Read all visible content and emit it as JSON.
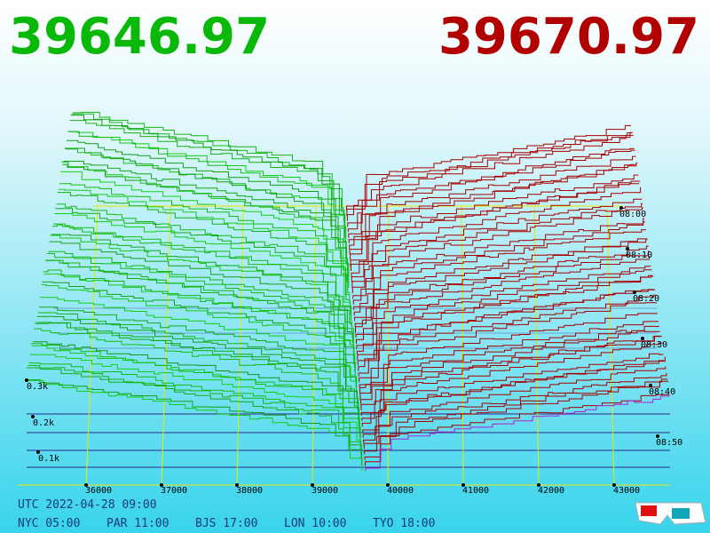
{
  "header": {
    "bid": "39646.97",
    "ask": "39670.97"
  },
  "axes": {
    "price_labels": [
      "36000",
      "37000",
      "38000",
      "39000",
      "40000",
      "41000",
      "42000",
      "43000"
    ],
    "volume_labels": [
      "0.3k",
      "0.2k",
      "0.1k"
    ],
    "time_labels": [
      "08:00",
      "08:10",
      "08:20",
      "08:30",
      "08:40",
      "08:50"
    ]
  },
  "footer": {
    "utc": "UTC 2022-04-28 09:00",
    "zones": [
      "NYC 05:00",
      "PAR 11:00",
      "BJS 17:00",
      "LON 10:00",
      "TYO 18:00"
    ]
  }
}
